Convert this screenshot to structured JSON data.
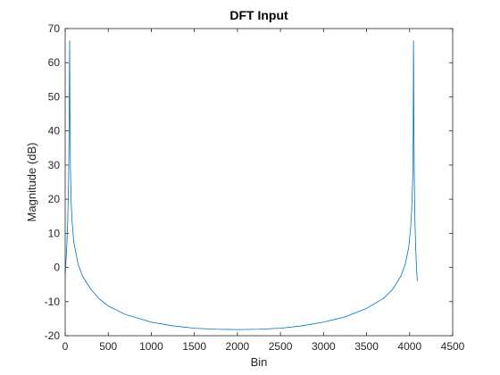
{
  "chart_data": {
    "type": "line",
    "title": "DFT Input",
    "xlabel": "Bin",
    "ylabel": "Magnitude (dB)",
    "xlim": [
      0,
      4500
    ],
    "ylim": [
      -20,
      70
    ],
    "xticks": [
      0,
      500,
      1000,
      1500,
      2000,
      2500,
      3000,
      3500,
      4000,
      4500
    ],
    "yticks": [
      -20,
      -10,
      0,
      10,
      20,
      30,
      40,
      50,
      60,
      70
    ],
    "grid": false,
    "box": true,
    "series": [
      {
        "color": "#0072BD",
        "x": [
          0,
          10,
          20,
          30,
          40,
          45,
          50,
          52,
          55,
          60,
          70,
          80,
          100,
          150,
          200,
          300,
          400,
          500,
          700,
          1000,
          1250,
          1500,
          1750,
          2000,
          2250,
          2500,
          2750,
          3000,
          3250,
          3500,
          3700,
          3800,
          3900,
          3950,
          3990,
          4010,
          4020,
          4030,
          4040,
          4043,
          4045,
          4047,
          4050,
          4055,
          4060,
          4070,
          4080,
          4090
        ],
        "y": [
          -2,
          2,
          7,
          14,
          26,
          40,
          60,
          66.5,
          48,
          30,
          19,
          13.5,
          7.5,
          1,
          -2.5,
          -6.5,
          -9.3,
          -11.3,
          -13.8,
          -16,
          -17.1,
          -17.8,
          -18.1,
          -18.2,
          -18.1,
          -17.8,
          -17.1,
          -16,
          -14.5,
          -12,
          -9,
          -6.5,
          -2.5,
          1,
          6,
          11,
          15,
          21,
          30,
          50,
          66.5,
          60,
          40,
          25,
          15,
          6,
          0,
          -4
        ]
      }
    ]
  }
}
